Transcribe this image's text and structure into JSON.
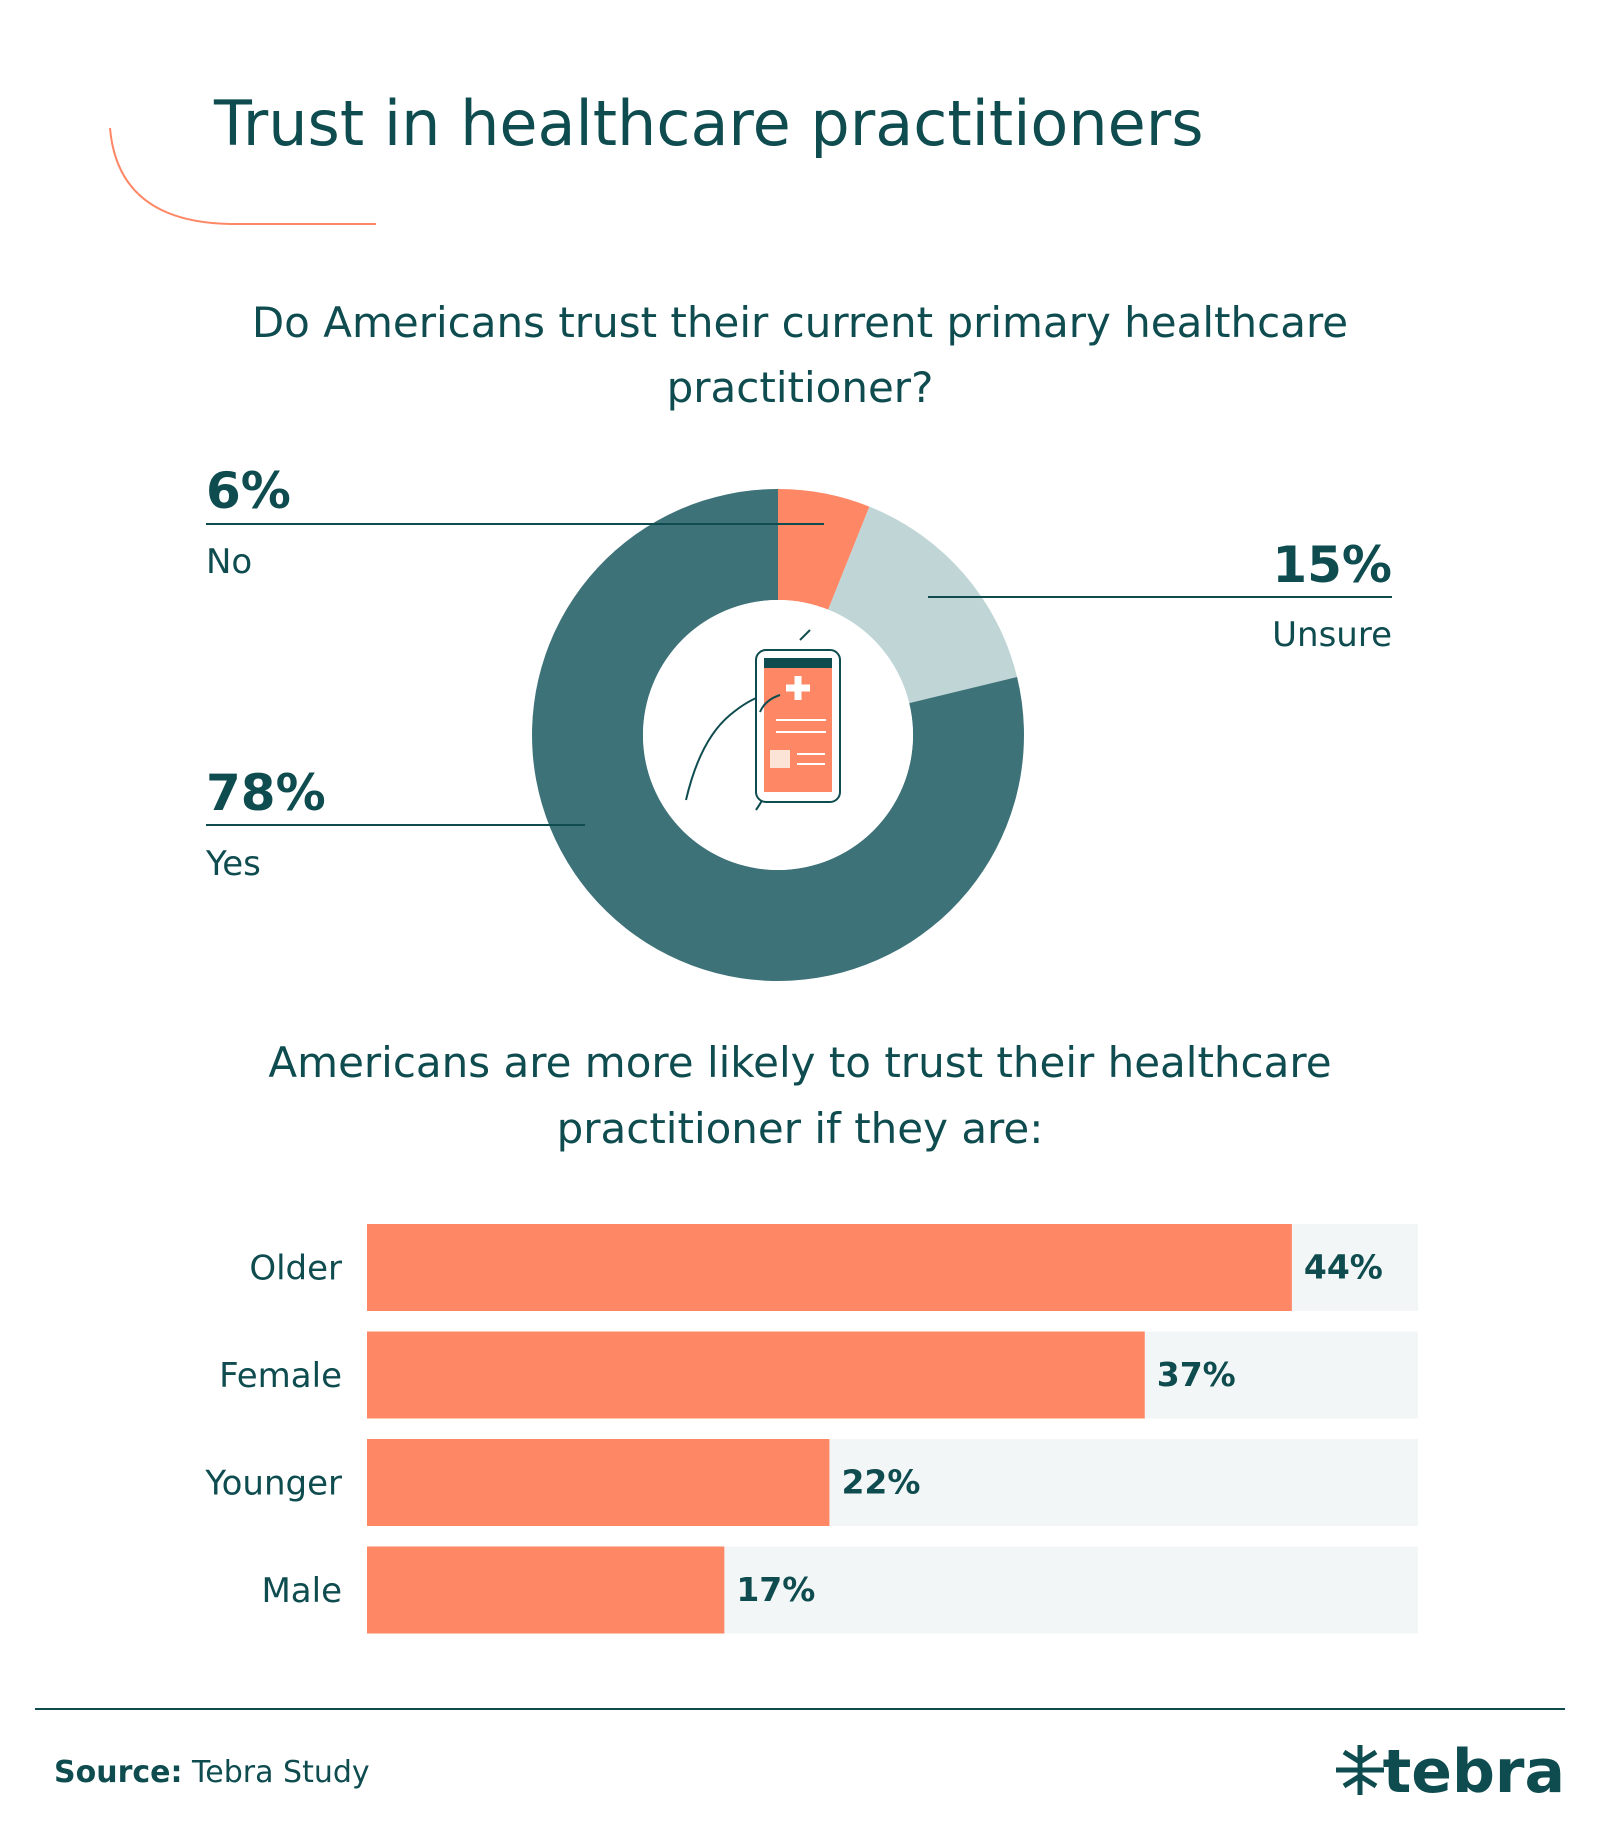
{
  "title": "Trust in healthcare practitioners",
  "chart_data": [
    {
      "type": "pie",
      "title": "Do Americans trust their current primary healthcare practitioner?",
      "categories": [
        "No",
        "Unsure",
        "Yes"
      ],
      "values": [
        6,
        15,
        78
      ],
      "value_labels": [
        "6%",
        "15%",
        "78%"
      ],
      "colors": [
        "#fe8866",
        "#c0d6d6",
        "#3e7279"
      ],
      "donut": true
    },
    {
      "type": "barh",
      "title": "Americans are more likely to trust their healthcare practitioner if they are:",
      "categories": [
        "Older",
        "Female",
        "Younger",
        "Male"
      ],
      "values": [
        44,
        37,
        22,
        17
      ],
      "value_labels": [
        "44%",
        "37%",
        "22%",
        "17%"
      ],
      "color": "#fe8866",
      "track_color": "#f3f6f6",
      "xlim": [
        0,
        50
      ]
    }
  ],
  "source": {
    "label": "Source:",
    "text": "Tebra Study"
  },
  "logo": "tebra"
}
